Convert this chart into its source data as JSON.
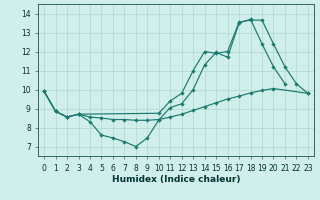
{
  "xlabel": "Humidex (Indice chaleur)",
  "xlim": [
    -0.5,
    23.5
  ],
  "ylim": [
    6.5,
    14.5
  ],
  "yticks": [
    7,
    8,
    9,
    10,
    11,
    12,
    13,
    14
  ],
  "xticks": [
    0,
    1,
    2,
    3,
    4,
    5,
    6,
    7,
    8,
    9,
    10,
    11,
    12,
    13,
    14,
    15,
    16,
    17,
    18,
    19,
    20,
    21,
    22,
    23
  ],
  "bg_color": "#d0eeea",
  "grid_color": "#b0d8d0",
  "line_color": "#1a7a6e",
  "line1_x": [
    0,
    1,
    2,
    3,
    4,
    5,
    6,
    7,
    8,
    9,
    10,
    11,
    12,
    13,
    14,
    15,
    16,
    17,
    18,
    19,
    20,
    21
  ],
  "line1_y": [
    9.9,
    8.85,
    8.55,
    8.7,
    8.3,
    7.6,
    7.45,
    7.25,
    7.0,
    7.45,
    8.4,
    9.05,
    9.25,
    10.0,
    11.3,
    11.95,
    11.7,
    13.5,
    13.7,
    12.4,
    11.2,
    10.3
  ],
  "line2_x": [
    0,
    1,
    2,
    3,
    4,
    5,
    6,
    7,
    8,
    9,
    10,
    11,
    12,
    13,
    14,
    15,
    16,
    17,
    18,
    19,
    20,
    23
  ],
  "line2_y": [
    9.9,
    8.85,
    8.55,
    8.7,
    8.55,
    8.5,
    8.42,
    8.42,
    8.38,
    8.38,
    8.42,
    8.55,
    8.7,
    8.9,
    9.1,
    9.3,
    9.5,
    9.65,
    9.82,
    9.95,
    10.05,
    9.8
  ],
  "line3_x": [
    0,
    1,
    2,
    3,
    10,
    11,
    12,
    13,
    14,
    15,
    16,
    17,
    18,
    19,
    20,
    21,
    22,
    23
  ],
  "line3_y": [
    9.9,
    8.85,
    8.55,
    8.7,
    8.75,
    9.4,
    9.8,
    11.0,
    12.0,
    11.9,
    12.0,
    13.55,
    13.65,
    13.65,
    12.4,
    11.2,
    10.3,
    9.8
  ]
}
